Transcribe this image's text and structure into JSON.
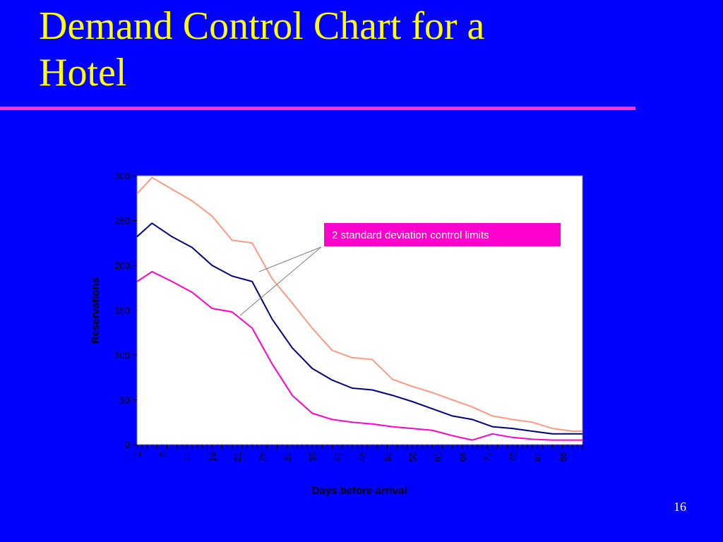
{
  "slide": {
    "title_line1": "Demand Control Chart for a",
    "title_line2": "Hotel",
    "number": "16"
  },
  "colors": {
    "background": "#0000ff",
    "title": "#ffff00",
    "rule": "#ff33cc",
    "annotation_box": "#ff00cc"
  },
  "chart_data": {
    "type": "line",
    "title": "",
    "xlabel": "Days before arrival",
    "ylabel": "Reservations",
    "xlim": [
      1,
      90
    ],
    "ylim": [
      0,
      300
    ],
    "y_ticks": [
      0,
      50,
      100,
      150,
      200,
      250,
      300
    ],
    "x_tick_labels": [
      "1",
      "6",
      "11",
      "16",
      "21",
      "26",
      "31",
      "36",
      "41",
      "46",
      "51",
      "56",
      "61",
      "66",
      "71",
      "76",
      "81",
      "86"
    ],
    "grid": false,
    "legend": "none",
    "annotation": "2 standard deviation control limits",
    "x": [
      1,
      4,
      8,
      12,
      16,
      20,
      24,
      28,
      32,
      36,
      40,
      44,
      48,
      52,
      56,
      60,
      64,
      68,
      72,
      76,
      80,
      84,
      88,
      90
    ],
    "series": [
      {
        "color": "#ff9980",
        "values": [
          280,
          298,
          285,
          272,
          255,
          228,
          225,
          185,
          158,
          130,
          105,
          97,
          95,
          73,
          65,
          58,
          50,
          42,
          32,
          28,
          25,
          18,
          15,
          15
        ]
      },
      {
        "color": "#000080",
        "values": [
          232,
          247,
          232,
          220,
          200,
          188,
          182,
          140,
          108,
          85,
          72,
          63,
          61,
          55,
          48,
          40,
          32,
          28,
          20,
          18,
          15,
          12,
          12,
          12
        ]
      },
      {
        "color": "#ff00cc",
        "values": [
          182,
          193,
          182,
          170,
          152,
          148,
          130,
          90,
          55,
          35,
          28,
          25,
          23,
          20,
          18,
          16,
          10,
          5,
          12,
          8,
          6,
          5,
          5,
          5
        ]
      }
    ]
  }
}
